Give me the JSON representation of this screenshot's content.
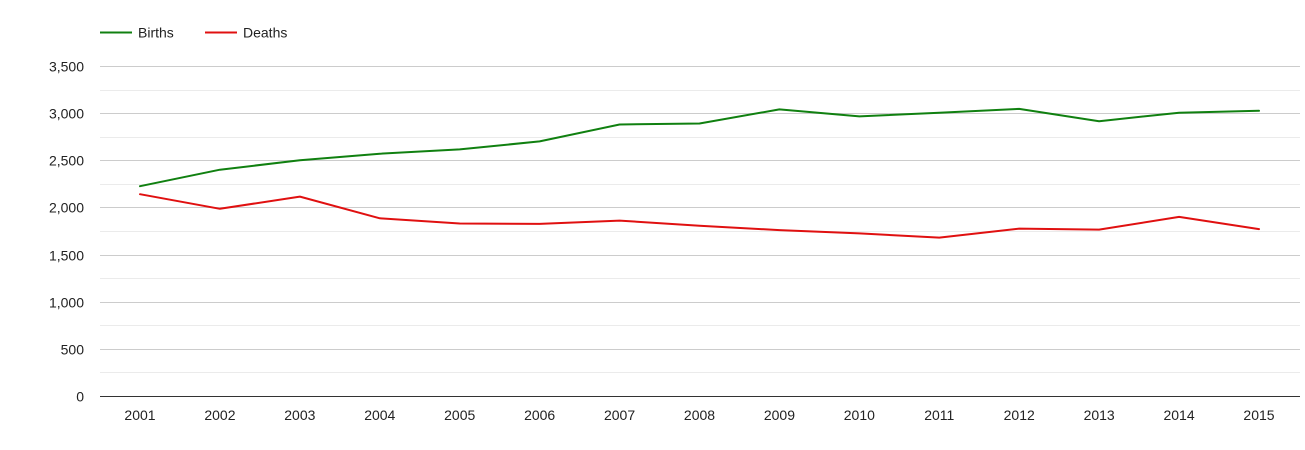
{
  "chart_data": {
    "type": "line",
    "title": "",
    "xlabel": "",
    "ylabel": "",
    "x": [
      "2001",
      "2002",
      "2003",
      "2004",
      "2005",
      "2006",
      "2007",
      "2008",
      "2009",
      "2010",
      "2011",
      "2012",
      "2013",
      "2014",
      "2015"
    ],
    "ylim": [
      0,
      3500
    ],
    "yticks": [
      0,
      500,
      1000,
      1500,
      2000,
      2500,
      3000,
      3500
    ],
    "ytick_labels": [
      "0",
      "500",
      "1,000",
      "1,500",
      "2,000",
      "2,500",
      "3,000",
      "3,500"
    ],
    "grid": true,
    "minor_grid": true,
    "legend_position": "top-left",
    "series": [
      {
        "name": "Births",
        "color": "#108010",
        "values": [
          2225,
          2400,
          2500,
          2570,
          2615,
          2700,
          2880,
          2890,
          3040,
          2965,
          3005,
          3045,
          2915,
          3005,
          3025
        ]
      },
      {
        "name": "Deaths",
        "color": "#e01010",
        "values": [
          2140,
          1985,
          2115,
          1885,
          1830,
          1825,
          1860,
          1805,
          1760,
          1725,
          1680,
          1775,
          1765,
          1900,
          1770
        ]
      }
    ]
  }
}
